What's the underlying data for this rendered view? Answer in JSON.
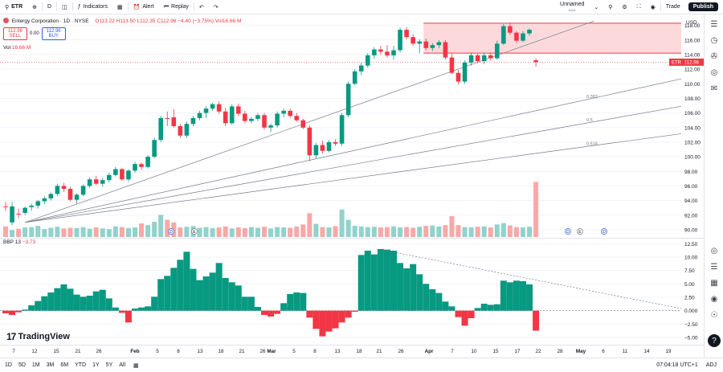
{
  "toolbar": {
    "symbol": "ETR",
    "interval": "D",
    "indicators_label": "Indicators",
    "alert_label": "Alert",
    "replay_label": "Replay",
    "layout_name": "Unnamed",
    "layout_status": "Save",
    "trade_label": "Trade",
    "publish_label": "Publish"
  },
  "legend": {
    "title": "Entergy Corporation · 1D · NYSE",
    "ohlc": "O113.22 H113.50 L112.35 C112.96 −4.40 (−3.75%) Vol16.66 M",
    "sell_price": "112.96",
    "sell_label": "SELL",
    "spread": "0.00",
    "buy_price": "112.96",
    "buy_label": "BUY",
    "vol_label": "Vol",
    "vol_value": "16.66 M",
    "indicator_name": "BBP 13",
    "indicator_value": "−3.73"
  },
  "bottom": {
    "ranges": [
      "1D",
      "5D",
      "1M",
      "3M",
      "6M",
      "YTD",
      "1Y",
      "5Y",
      "All"
    ],
    "clock": "07:04:18 UTC+1",
    "adj": "ADJ"
  },
  "colors": {
    "up": "#089981",
    "down": "#f23645",
    "up_volume": "#92d2cc",
    "down_volume": "#f7a9a7",
    "zone_fill": "#fbd3d6",
    "zone_border": "#f23645"
  },
  "icons": [
    "search-icon",
    "plus-icon",
    "indicators-icon",
    "alert-icon",
    "replay-icon",
    "undo-icon",
    "redo-icon",
    "fullscreen-icon",
    "settings-icon",
    "camera-icon",
    "watchlist-icon",
    "alerts-clock-icon",
    "chat-icon",
    "target-icon",
    "layers-icon",
    "calendar-icon",
    "notifications-icon",
    "help-icon"
  ],
  "chart_data": {
    "type": "candlestick",
    "symbol": "ETR",
    "title": "Entergy Corporation · 1D · NYSE",
    "x_tick_labels": [
      "7",
      "12",
      "15",
      "21",
      "26",
      "Feb",
      "5",
      "8",
      "13",
      "18",
      "21",
      "26",
      "Mar",
      "5",
      "8",
      "13",
      "18",
      "21",
      "26",
      "Apr",
      "7",
      "10",
      "15",
      "17",
      "22",
      "28",
      "May",
      "6",
      "11",
      "14",
      "19"
    ],
    "y_ticks": [
      90,
      92,
      94,
      96,
      98,
      100,
      102,
      104,
      106,
      108,
      110,
      112,
      114,
      116,
      118
    ],
    "ylim": [
      89,
      119.5
    ],
    "y_axis_labels": [
      "118.00",
      "116.00",
      "114.00",
      "112.00",
      "110.00",
      "108.00",
      "106.00",
      "104.00",
      "102.00",
      "100.00",
      "98.00",
      "96.00",
      "94.00",
      "92.00",
      "90.00"
    ],
    "last_price": 112.96,
    "last_price_label": "112.96",
    "currency": "USD",
    "candles": [
      {
        "o": 93.2,
        "h": 93.8,
        "l": 92.6,
        "c": 93.1
      },
      {
        "o": 91.0,
        "h": 93.8,
        "l": 90.6,
        "c": 93.2
      },
      {
        "o": 92.2,
        "h": 92.9,
        "l": 91.6,
        "c": 92.1
      },
      {
        "o": 92.3,
        "h": 93.2,
        "l": 92.0,
        "c": 93.0
      },
      {
        "o": 93.1,
        "h": 93.6,
        "l": 92.6,
        "c": 93.3
      },
      {
        "o": 93.3,
        "h": 94.1,
        "l": 92.9,
        "c": 93.9
      },
      {
        "o": 93.9,
        "h": 94.6,
        "l": 93.5,
        "c": 94.3
      },
      {
        "o": 94.3,
        "h": 95.1,
        "l": 94.0,
        "c": 94.9
      },
      {
        "o": 94.9,
        "h": 96.3,
        "l": 94.6,
        "c": 96.0
      },
      {
        "o": 96.0,
        "h": 96.4,
        "l": 95.2,
        "c": 95.6
      },
      {
        "o": 95.6,
        "h": 95.9,
        "l": 93.9,
        "c": 94.1
      },
      {
        "o": 94.1,
        "h": 95.0,
        "l": 93.6,
        "c": 94.8
      },
      {
        "o": 94.8,
        "h": 96.2,
        "l": 94.6,
        "c": 96.0
      },
      {
        "o": 96.0,
        "h": 97.2,
        "l": 95.8,
        "c": 96.9
      },
      {
        "o": 96.9,
        "h": 97.4,
        "l": 96.1,
        "c": 96.3
      },
      {
        "o": 96.3,
        "h": 97.1,
        "l": 95.9,
        "c": 96.8
      },
      {
        "o": 96.8,
        "h": 97.8,
        "l": 96.5,
        "c": 97.5
      },
      {
        "o": 97.5,
        "h": 98.6,
        "l": 97.3,
        "c": 98.3
      },
      {
        "o": 98.3,
        "h": 98.5,
        "l": 96.7,
        "c": 96.9
      },
      {
        "o": 96.9,
        "h": 98.3,
        "l": 96.6,
        "c": 98.1
      },
      {
        "o": 98.1,
        "h": 99.3,
        "l": 97.8,
        "c": 99.0
      },
      {
        "o": 99.0,
        "h": 99.2,
        "l": 98.2,
        "c": 98.6
      },
      {
        "o": 98.6,
        "h": 100.2,
        "l": 98.4,
        "c": 100.0
      },
      {
        "o": 100.0,
        "h": 102.6,
        "l": 99.8,
        "c": 102.3
      },
      {
        "o": 102.3,
        "h": 105.6,
        "l": 102.0,
        "c": 105.3
      },
      {
        "o": 105.3,
        "h": 106.2,
        "l": 104.2,
        "c": 105.2
      },
      {
        "o": 105.4,
        "h": 106.5,
        "l": 104.0,
        "c": 104.2
      },
      {
        "o": 104.2,
        "h": 104.5,
        "l": 102.6,
        "c": 102.9
      },
      {
        "o": 102.9,
        "h": 104.8,
        "l": 102.6,
        "c": 104.5
      },
      {
        "o": 104.5,
        "h": 105.6,
        "l": 104.2,
        "c": 105.3
      },
      {
        "o": 105.3,
        "h": 106.3,
        "l": 105.0,
        "c": 106.0
      },
      {
        "o": 106.0,
        "h": 106.9,
        "l": 105.3,
        "c": 106.6
      },
      {
        "o": 106.6,
        "h": 107.4,
        "l": 106.3,
        "c": 107.2
      },
      {
        "o": 107.2,
        "h": 107.6,
        "l": 105.9,
        "c": 106.2
      },
      {
        "o": 106.2,
        "h": 106.7,
        "l": 104.2,
        "c": 104.6
      },
      {
        "o": 104.6,
        "h": 107.2,
        "l": 104.4,
        "c": 106.9
      },
      {
        "o": 106.9,
        "h": 107.3,
        "l": 105.6,
        "c": 105.9
      },
      {
        "o": 105.9,
        "h": 106.3,
        "l": 104.6,
        "c": 104.9
      },
      {
        "o": 104.9,
        "h": 105.4,
        "l": 104.6,
        "c": 105.2
      },
      {
        "o": 105.2,
        "h": 106.0,
        "l": 104.9,
        "c": 105.7
      },
      {
        "o": 105.7,
        "h": 106.0,
        "l": 103.7,
        "c": 104.0
      },
      {
        "o": 104.0,
        "h": 104.6,
        "l": 103.4,
        "c": 104.3
      },
      {
        "o": 104.3,
        "h": 106.2,
        "l": 104.0,
        "c": 105.9
      },
      {
        "o": 105.9,
        "h": 106.6,
        "l": 105.4,
        "c": 106.3
      },
      {
        "o": 106.3,
        "h": 106.6,
        "l": 105.3,
        "c": 105.6
      },
      {
        "o": 105.6,
        "h": 106.0,
        "l": 104.8,
        "c": 105.0
      },
      {
        "o": 105.0,
        "h": 105.2,
        "l": 103.8,
        "c": 104.0
      },
      {
        "o": 104.0,
        "h": 104.3,
        "l": 99.4,
        "c": 100.2
      },
      {
        "o": 100.2,
        "h": 101.9,
        "l": 99.8,
        "c": 101.6
      },
      {
        "o": 101.6,
        "h": 102.2,
        "l": 100.4,
        "c": 100.8
      },
      {
        "o": 100.8,
        "h": 102.3,
        "l": 100.6,
        "c": 102.0
      },
      {
        "o": 102.0,
        "h": 102.4,
        "l": 101.5,
        "c": 101.8
      },
      {
        "o": 101.8,
        "h": 106.0,
        "l": 101.5,
        "c": 105.7
      },
      {
        "o": 105.7,
        "h": 110.3,
        "l": 105.4,
        "c": 110.0
      },
      {
        "o": 110.0,
        "h": 112.0,
        "l": 109.8,
        "c": 111.7
      },
      {
        "o": 111.7,
        "h": 112.9,
        "l": 111.2,
        "c": 112.5
      },
      {
        "o": 112.5,
        "h": 114.2,
        "l": 112.2,
        "c": 113.9
      },
      {
        "o": 113.9,
        "h": 115.0,
        "l": 113.4,
        "c": 114.7
      },
      {
        "o": 114.7,
        "h": 115.2,
        "l": 114.0,
        "c": 114.4
      },
      {
        "o": 114.4,
        "h": 115.3,
        "l": 113.6,
        "c": 113.9
      },
      {
        "o": 113.9,
        "h": 115.2,
        "l": 113.3,
        "c": 114.6
      },
      {
        "o": 114.6,
        "h": 117.7,
        "l": 114.3,
        "c": 117.4
      },
      {
        "o": 117.4,
        "h": 117.8,
        "l": 116.1,
        "c": 116.4
      },
      {
        "o": 116.4,
        "h": 116.8,
        "l": 115.2,
        "c": 115.5
      },
      {
        "o": 115.5,
        "h": 116.1,
        "l": 114.2,
        "c": 115.8
      },
      {
        "o": 115.8,
        "h": 116.2,
        "l": 114.6,
        "c": 114.9
      },
      {
        "o": 114.9,
        "h": 115.6,
        "l": 114.5,
        "c": 115.3
      },
      {
        "o": 115.3,
        "h": 116.0,
        "l": 114.9,
        "c": 115.7
      },
      {
        "o": 115.7,
        "h": 116.0,
        "l": 113.3,
        "c": 113.6
      },
      {
        "o": 113.6,
        "h": 114.1,
        "l": 111.3,
        "c": 111.5
      },
      {
        "o": 111.5,
        "h": 111.9,
        "l": 109.9,
        "c": 110.3
      },
      {
        "o": 110.3,
        "h": 113.2,
        "l": 110.0,
        "c": 112.9
      },
      {
        "o": 112.9,
        "h": 114.3,
        "l": 112.5,
        "c": 113.9
      },
      {
        "o": 113.9,
        "h": 114.1,
        "l": 112.8,
        "c": 113.1
      },
      {
        "o": 113.1,
        "h": 114.2,
        "l": 112.7,
        "c": 113.9
      },
      {
        "o": 113.9,
        "h": 114.3,
        "l": 113.2,
        "c": 113.5
      },
      {
        "o": 113.5,
        "h": 115.9,
        "l": 113.3,
        "c": 115.5
      },
      {
        "o": 115.5,
        "h": 118.2,
        "l": 115.3,
        "c": 117.9
      },
      {
        "o": 117.9,
        "h": 118.4,
        "l": 116.7,
        "c": 117.0
      },
      {
        "o": 117.0,
        "h": 117.2,
        "l": 115.6,
        "c": 115.9
      },
      {
        "o": 115.9,
        "h": 117.2,
        "l": 115.7,
        "c": 116.9
      },
      {
        "o": 116.9,
        "h": 117.6,
        "l": 116.6,
        "c": 117.4
      },
      {
        "o": 113.22,
        "h": 113.5,
        "l": 112.35,
        "c": 112.96
      }
    ],
    "volume": {
      "unit": "millions",
      "values": [
        3.2,
        2.1,
        2.5,
        2.9,
        3.0,
        3.4,
        2.4,
        2.8,
        3.1,
        2.6,
        2.8,
        2.7,
        3.0,
        2.5,
        2.9,
        2.6,
        2.4,
        3.2,
        3.0,
        2.7,
        2.9,
        4.1,
        3.6,
        4.6,
        6.7,
        5.2,
        4.4,
        2.9,
        3.1,
        3.3,
        2.8,
        3.0,
        2.7,
        2.9,
        3.2,
        2.6,
        2.9,
        2.7,
        3.0,
        2.8,
        3.1,
        2.6,
        3.0,
        2.9,
        2.8,
        3.2,
        3.8,
        7.2,
        4.0,
        3.0,
        2.9,
        3.3,
        8.3,
        5.2,
        3.4,
        3.2,
        3.0,
        3.1,
        2.9,
        3.0,
        3.2,
        2.9,
        3.0,
        2.8,
        3.1,
        3.4,
        3.5,
        3.2,
        3.6,
        6.3,
        3.6,
        3.0,
        2.9,
        3.1,
        3.2,
        2.9,
        3.8,
        4.2,
        3.5,
        3.0,
        2.9,
        3.1,
        16.66
      ]
    },
    "fib_levels": [
      {
        "label": "0.382",
        "ratio": 0.382
      },
      {
        "label": "0.5",
        "ratio": 0.5
      },
      {
        "label": "0.618",
        "ratio": 0.618
      }
    ],
    "zone": {
      "top": 118.3,
      "bottom": 114.2
    },
    "event_markers": [
      "D",
      "E",
      "D",
      "E",
      "D",
      "E",
      "D"
    ],
    "indicator": {
      "name": "BBP 13",
      "ylim": [
        -6.2,
        13.3
      ],
      "y_ticks": [
        12.5,
        10.0,
        7.5,
        5.0,
        2.5,
        0.0,
        -2.5,
        -5.0
      ],
      "y_tick_labels": [
        "12.50",
        "10.00",
        "7.50",
        "5.00",
        "2.50",
        "0.000",
        "−2.50",
        "−5.00"
      ],
      "values": [
        -0.5,
        -0.8,
        -0.3,
        0.2,
        1.0,
        1.8,
        2.7,
        3.4,
        4.2,
        4.9,
        4.1,
        3.0,
        2.6,
        2.8,
        3.6,
        3.9,
        2.3,
        0.6,
        -0.4,
        -2.2,
        0.4,
        0.6,
        0.8,
        2.6,
        5.9,
        6.5,
        8.0,
        9.5,
        11.0,
        7.8,
        5.7,
        6.4,
        7.1,
        8.9,
        6.1,
        5.3,
        4.7,
        2.6,
        2.6,
        0.7,
        -0.8,
        -1.1,
        -0.6,
        1.4,
        3.1,
        3.4,
        3.3,
        -1.3,
        -3.4,
        -4.8,
        -3.9,
        -3.3,
        -2.2,
        -1.3,
        -0.2,
        10.4,
        11.2,
        10.5,
        11.5,
        11.4,
        11.2,
        8.9,
        7.9,
        8.7,
        6.8,
        5.0,
        4.0,
        3.3,
        1.7,
        0.8,
        -1.2,
        -2.8,
        -1.4,
        0.5,
        1.3,
        1.1,
        1.2,
        5.6,
        5.3,
        5.6,
        5.5,
        4.9,
        -3.73
      ]
    }
  }
}
